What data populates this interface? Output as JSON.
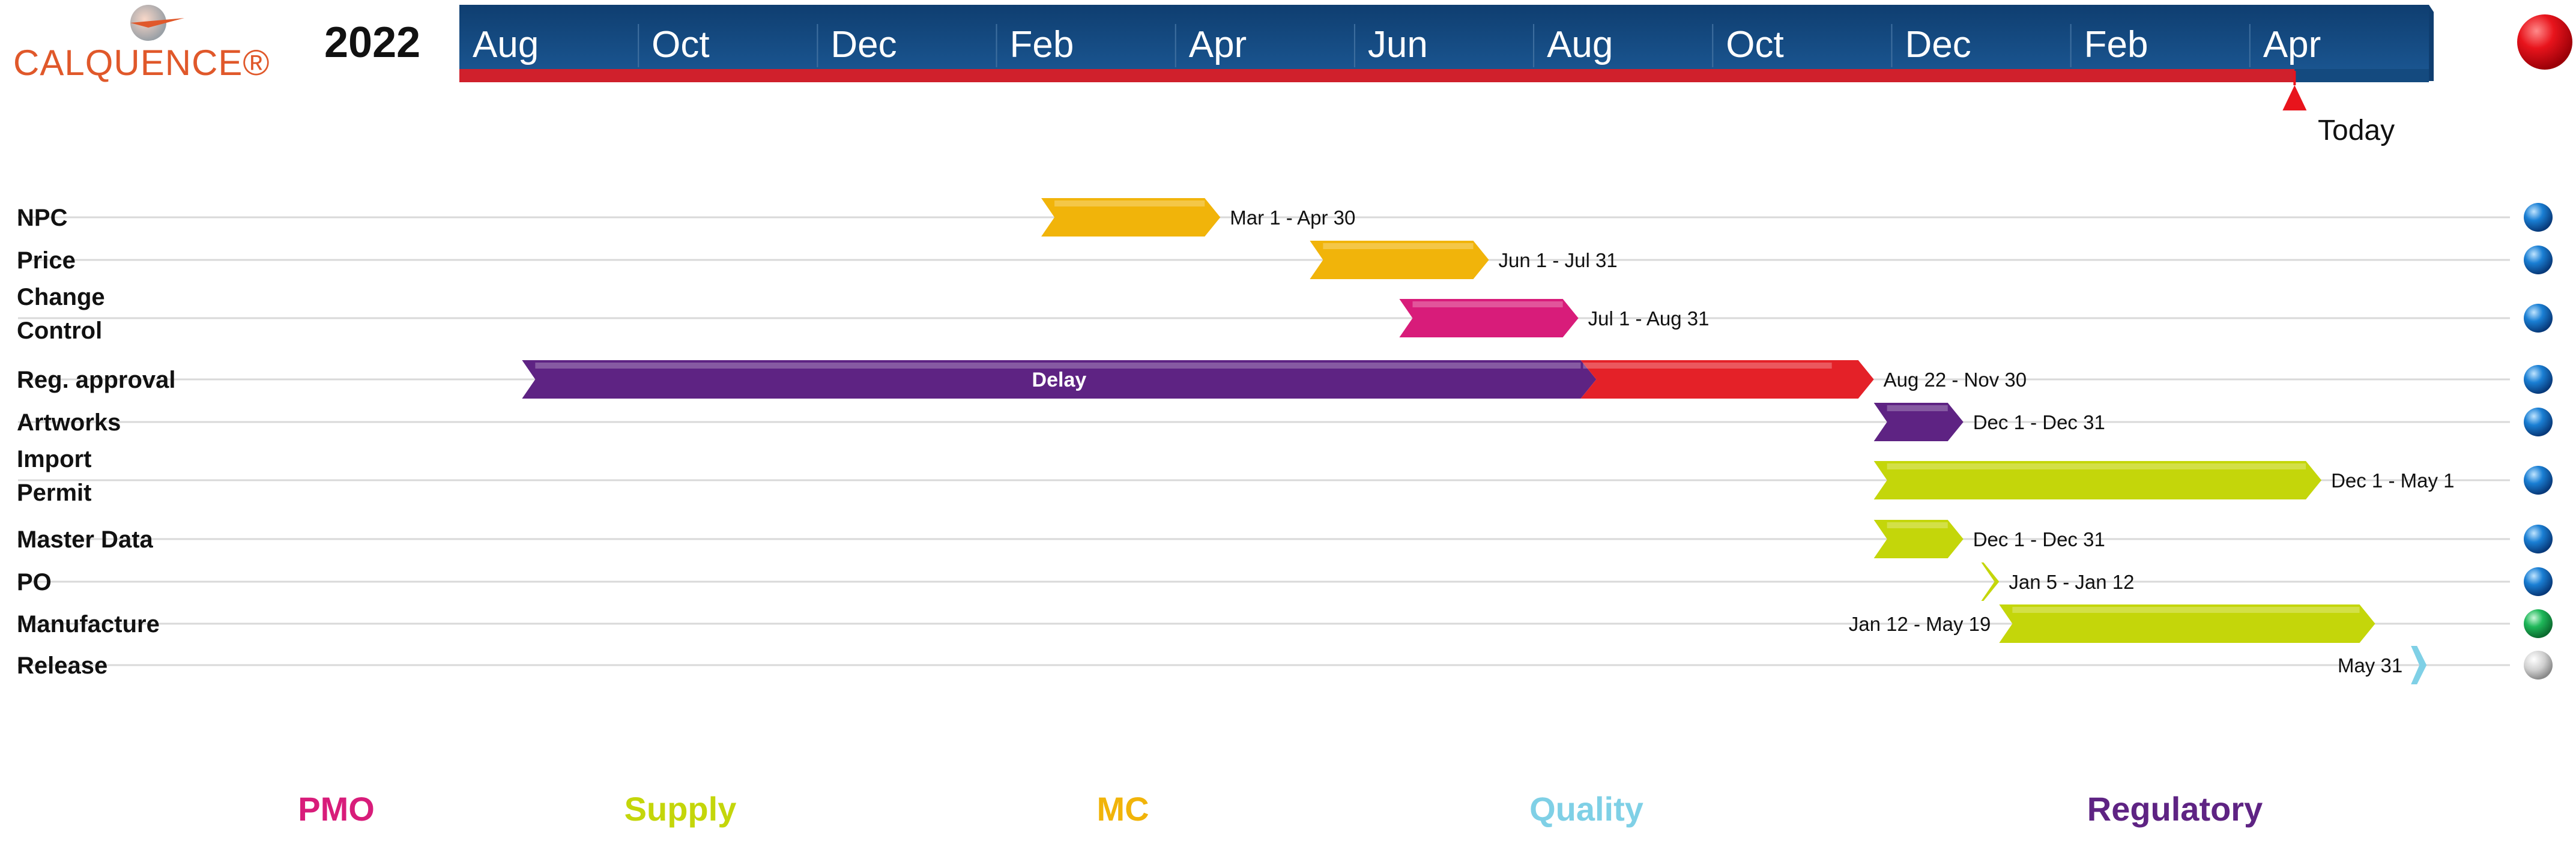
{
  "logo": {
    "text": "CALQUENCE®"
  },
  "year": "2022",
  "today": {
    "label": "Today"
  },
  "colors": {
    "timeline_bg": "#144a7f",
    "timeline_bar": "#d0202c",
    "today_marker": "#e8141c",
    "status_red": "#e8141c",
    "gold": "#f1b40a",
    "magenta": "#d81c7a",
    "purple": "#5e2383",
    "red": "#e42128",
    "lime": "#c4d60a",
    "cyan": "#7fd0e6",
    "blue_dot": "#1a7fd4",
    "green_dot": "#1fb85a",
    "gray_dot": "#c9c9c9",
    "row_line": "#d9d9d9"
  },
  "chart_data": {
    "type": "gantt",
    "x_axis_ticks": [
      "Aug",
      "Oct",
      "Dec",
      "Feb",
      "Apr",
      "Jun",
      "Aug",
      "Oct",
      "Dec",
      "Feb",
      "Apr"
    ],
    "time_domain_months": [
      0,
      22
    ],
    "today_month": 20.5,
    "rows": [
      {
        "label": [
          "NPC"
        ],
        "bars": [
          {
            "start": 6.5,
            "end": 8.5,
            "color": "gold",
            "text": ""
          }
        ],
        "date_label": "Mar 1 - Apr 30",
        "date_label_side": "right",
        "status": "blue"
      },
      {
        "label": [
          "Price"
        ],
        "bars": [
          {
            "start": 9.5,
            "end": 11.5,
            "color": "gold",
            "text": ""
          }
        ],
        "date_label": "Jun 1 - Jul 31",
        "date_label_side": "right",
        "status": "blue"
      },
      {
        "label": [
          "Change",
          "Control"
        ],
        "bars": [
          {
            "start": 10.5,
            "end": 12.5,
            "color": "magenta",
            "text": ""
          }
        ],
        "date_label": "Jul 1 - Aug 31",
        "date_label_side": "right",
        "status": "blue"
      },
      {
        "label": [
          "Reg. approval"
        ],
        "bars": [
          {
            "start": 0.7,
            "end": 12.7,
            "color": "purple",
            "text": "Delay"
          },
          {
            "start": 12.7,
            "end": 15.8,
            "color": "red",
            "text": ""
          }
        ],
        "date_label": "Aug 22 - Nov 30",
        "date_label_side": "right",
        "status": "blue"
      },
      {
        "label": [
          "Artworks"
        ],
        "bars": [
          {
            "start": 15.8,
            "end": 16.8,
            "color": "purple",
            "text": ""
          }
        ],
        "date_label": "Dec 1 - Dec 31",
        "date_label_side": "right",
        "status": "blue"
      },
      {
        "label": [
          "Import",
          "Permit"
        ],
        "bars": [
          {
            "start": 15.8,
            "end": 20.8,
            "color": "lime",
            "text": ""
          }
        ],
        "date_label": "Dec 1 - May 1",
        "date_label_side": "right",
        "status": "blue"
      },
      {
        "label": [
          "Master Data"
        ],
        "bars": [
          {
            "start": 15.8,
            "end": 16.8,
            "color": "lime",
            "text": ""
          }
        ],
        "date_label": "Dec 1 - Dec 31",
        "date_label_side": "right",
        "status": "blue"
      },
      {
        "label": [
          "PO"
        ],
        "bars": [
          {
            "start": 17.0,
            "end": 17.2,
            "color": "lime",
            "text": ""
          }
        ],
        "date_label": "Jan 5 - Jan 12",
        "date_label_side": "right",
        "status": "blue"
      },
      {
        "label": [
          "Manufacture"
        ],
        "bars": [
          {
            "start": 17.2,
            "end": 21.4,
            "color": "lime",
            "text": ""
          }
        ],
        "date_label": "Jan 12 - May 19",
        "date_label_side": "left",
        "status": "green"
      },
      {
        "label": [
          "Release"
        ],
        "bars": [
          {
            "start": 21.8,
            "end": 21.9,
            "color": "cyan",
            "text": ""
          }
        ],
        "date_label": "May 31",
        "date_label_side": "left",
        "status": "gray"
      }
    ]
  },
  "categories": [
    {
      "label": "PMO",
      "color": "#d81c7a"
    },
    {
      "label": "Supply",
      "color": "#c4d60a"
    },
    {
      "label": "MC",
      "color": "#f1b40a"
    },
    {
      "label": "Quality",
      "color": "#7fd0e6"
    },
    {
      "label": "Regulatory",
      "color": "#5e2383"
    }
  ]
}
